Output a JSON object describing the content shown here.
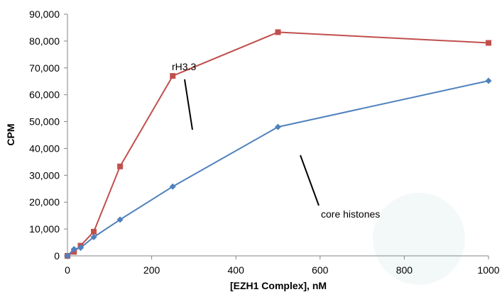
{
  "chart_data": {
    "type": "line",
    "xlabel": "[EZH1 Complex], nM",
    "ylabel": "CPM",
    "xlim": [
      0,
      1000
    ],
    "ylim": [
      0,
      90000
    ],
    "x_ticks": [
      "0",
      "200",
      "400",
      "600",
      "800",
      "1000"
    ],
    "y_ticks": [
      "0",
      "10,000",
      "20,000",
      "30,000",
      "40,000",
      "50,000",
      "60,000",
      "70,000",
      "80,000",
      "90,000"
    ],
    "grid": false,
    "series": [
      {
        "name": "rH3.3",
        "color": "#c0504d",
        "marker": "square",
        "x": [
          0,
          15.6,
          31.25,
          62.5,
          125,
          250,
          500,
          1000
        ],
        "y": [
          0,
          1500,
          3800,
          9000,
          33300,
          67000,
          83300,
          79300
        ]
      },
      {
        "name": "core histones",
        "color": "#4f81bd",
        "marker": "diamond",
        "x": [
          0,
          15.6,
          31.25,
          62.5,
          125,
          250,
          500,
          1000
        ],
        "y": [
          0,
          2500,
          3000,
          7000,
          13500,
          25800,
          48000,
          65200
        ]
      }
    ],
    "annotations": [
      "rH3.3",
      "core histones"
    ]
  }
}
